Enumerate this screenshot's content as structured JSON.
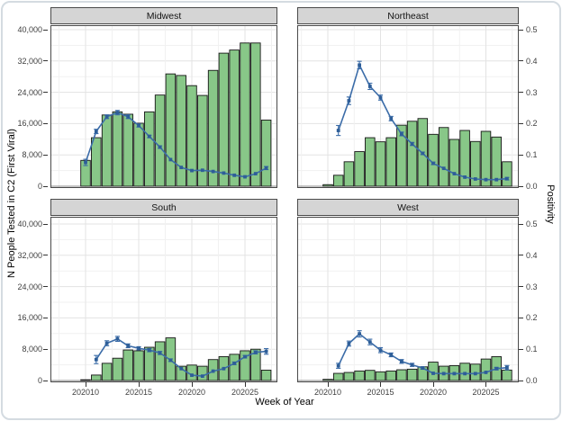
{
  "figure": {
    "x_axis_title": "Week of Year",
    "y_axis_title_left": "N People Tested in C2 (First Viral)",
    "y_axis_title_right": "Positivity"
  },
  "axes": {
    "y_left_tick_labels": [
      "0",
      "8,000",
      "16,000",
      "24,000",
      "32,000",
      "40,000"
    ],
    "y_left_tick_values": [
      0,
      8000,
      16000,
      24000,
      32000,
      40000
    ],
    "y_right_tick_labels": [
      "0.0",
      "0.1",
      "0.2",
      "0.3",
      "0.4",
      "0.5"
    ],
    "y_right_tick_values": [
      0.0,
      0.1,
      0.2,
      0.3,
      0.4,
      0.5
    ],
    "x_tick_labels": [
      "202010",
      "202015",
      "202020",
      "202025"
    ],
    "x_tick_values": [
      202010,
      202015,
      202020,
      202025
    ]
  },
  "colors": {
    "bar_fill": "#88C788",
    "bar_stroke": "#161616",
    "line": "#3B6CA8",
    "marker": "#2E5E98",
    "strip_bg": "#d5d5d5",
    "panel_border": "#4a4a4a",
    "grid_major": "#e3e3e3",
    "grid_minor": "#f1f1f1",
    "tick_text": "#3f3f3f"
  },
  "chart_data": {
    "type": "bar",
    "subtype": "dual-axis bar + line with error bars, 2x2 facets by region",
    "xlabel": "Week of Year",
    "ylabel_left": "N People Tested in C2 (First Viral)",
    "ylabel_right": "Positivity",
    "y_left_range": [
      0,
      40000
    ],
    "y_right_range": [
      0,
      0.5
    ],
    "grid": true,
    "legend": false,
    "weeks": [
      202009,
      202010,
      202011,
      202012,
      202013,
      202014,
      202015,
      202016,
      202017,
      202018,
      202019,
      202020,
      202021,
      202022,
      202023,
      202024,
      202025,
      202026,
      202027
    ],
    "facets": [
      {
        "name": "Midwest",
        "n_tested": [
          0,
          6600,
          12400,
          18200,
          19000,
          18400,
          16100,
          19000,
          23300,
          28700,
          28300,
          25700,
          23200,
          29600,
          34000,
          34800,
          36600,
          36600,
          16900
        ],
        "positivity": [
          null,
          0.076,
          0.175,
          0.222,
          0.235,
          0.222,
          0.194,
          0.159,
          0.125,
          0.085,
          0.06,
          0.05,
          0.051,
          0.047,
          0.042,
          0.035,
          0.03,
          0.04,
          0.058
        ],
        "pos_err": [
          0,
          0.01,
          0.007,
          0.006,
          0.007,
          0.006,
          0.005,
          0.004,
          0.004,
          0.003,
          0.003,
          0.003,
          0.003,
          0.003,
          0.002,
          0.002,
          0.002,
          0.003,
          0.005
        ]
      },
      {
        "name": "Northeast",
        "n_tested": [
          0,
          400,
          2800,
          6250,
          8840,
          12400,
          11350,
          12400,
          15600,
          16600,
          17300,
          13260,
          15000,
          11960,
          14250,
          11430,
          14020,
          12570,
          6250
        ],
        "positivity": [
          null,
          null,
          0.178,
          0.273,
          0.387,
          0.319,
          0.283,
          0.216,
          0.167,
          0.135,
          0.105,
          0.073,
          0.057,
          0.04,
          0.029,
          0.023,
          0.021,
          0.021,
          0.024
        ],
        "pos_err": [
          0,
          0,
          0.016,
          0.012,
          0.012,
          0.01,
          0.008,
          0.007,
          0.006,
          0.005,
          0.004,
          0.004,
          0.003,
          0.003,
          0.003,
          0.002,
          0.002,
          0.002,
          0.004
        ]
      },
      {
        "name": "South",
        "n_tested": [
          0,
          200,
          1400,
          4400,
          5700,
          7800,
          7600,
          8500,
          9900,
          10900,
          3650,
          3950,
          3650,
          5350,
          6100,
          6700,
          7600,
          8000,
          2650
        ],
        "positivity": [
          null,
          null,
          0.067,
          0.119,
          0.133,
          0.111,
          0.103,
          0.097,
          0.088,
          0.065,
          0.038,
          0.017,
          0.014,
          0.03,
          0.038,
          0.055,
          0.076,
          0.09,
          0.093
        ],
        "pos_err": [
          0,
          0,
          0.013,
          0.008,
          0.008,
          0.006,
          0.005,
          0.005,
          0.005,
          0.004,
          0.003,
          0.002,
          0.002,
          0.003,
          0.003,
          0.004,
          0.004,
          0.005,
          0.009
        ]
      },
      {
        "name": "West",
        "n_tested": [
          0,
          300,
          1830,
          2060,
          2440,
          2600,
          2220,
          2440,
          2750,
          2900,
          3500,
          4700,
          3660,
          3810,
          4420,
          4190,
          5490,
          6100,
          2670
        ],
        "positivity": [
          null,
          null,
          0.047,
          0.118,
          0.149,
          0.123,
          0.097,
          0.082,
          0.061,
          0.05,
          0.04,
          0.023,
          0.022,
          0.022,
          0.022,
          0.022,
          0.026,
          0.038,
          0.041
        ],
        "pos_err": [
          0,
          0,
          0.008,
          0.008,
          0.01,
          0.009,
          0.008,
          0.006,
          0.006,
          0.005,
          0.004,
          0.003,
          0.002,
          0.002,
          0.002,
          0.002,
          0.003,
          0.004,
          0.007
        ]
      }
    ]
  }
}
